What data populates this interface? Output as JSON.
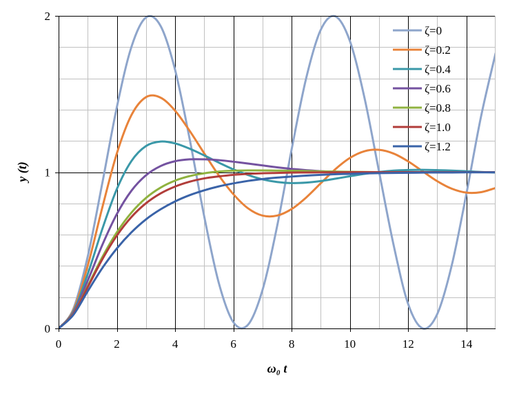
{
  "chart_data": {
    "type": "line",
    "title": "",
    "xlabel": "ω₀ t",
    "ylabel": "y (t)",
    "xlim": [
      0,
      15
    ],
    "ylim": [
      0,
      2
    ],
    "x_ticks": [
      "0",
      "2",
      "4",
      "6",
      "8",
      "10",
      "12",
      "14"
    ],
    "y_ticks": [
      "0",
      "1",
      "2"
    ],
    "grid": true,
    "legend_position": "top-right",
    "x": [
      0,
      0.5,
      1,
      1.5,
      2,
      2.5,
      3,
      3.5,
      4,
      4.5,
      5,
      5.5,
      6,
      6.5,
      7,
      7.5,
      8,
      8.5,
      9,
      9.5,
      10,
      10.5,
      11,
      11.5,
      12,
      12.5,
      13,
      13.5,
      14,
      14.5,
      15
    ],
    "series": [
      {
        "name": "ζ=0",
        "color": "#8ea5cb",
        "values": [
          0,
          0.122,
          0.46,
          0.929,
          1.416,
          1.801,
          1.99,
          1.936,
          1.654,
          1.211,
          0.716,
          0.291,
          0.04,
          0.023,
          0.246,
          0.653,
          1.146,
          1.602,
          1.911,
          1.997,
          1.839,
          1.476,
          1.004,
          0.534,
          0.156,
          0.0003,
          0.093,
          0.407,
          0.863,
          1.355,
          1.76
        ]
      },
      {
        "name": "ζ=0.2",
        "color": "#e8833a",
        "values": [
          0,
          0.114,
          0.401,
          0.773,
          1.12,
          1.365,
          1.48,
          1.477,
          1.393,
          1.264,
          1.12,
          0.979,
          0.859,
          0.769,
          0.722,
          0.722,
          0.764,
          0.838,
          0.929,
          1.019,
          1.091,
          1.134,
          1.143,
          1.119,
          1.069,
          1.005,
          0.942,
          0.894,
          0.869,
          0.872,
          0.899
        ]
      },
      {
        "name": "ζ=0.4",
        "color": "#3a98a8",
        "values": [
          0,
          0.106,
          0.348,
          0.636,
          0.892,
          1.071,
          1.167,
          1.196,
          1.184,
          1.15,
          1.107,
          1.061,
          1.018,
          0.982,
          0.954,
          0.937,
          0.93,
          0.933,
          0.943,
          0.958,
          0.974,
          0.989,
          1.001,
          1.01,
          1.014,
          1.015,
          1.013,
          1.01,
          1.006,
          1.001,
          0.998
        ]
      },
      {
        "name": "ζ=0.6",
        "color": "#7452a0",
        "values": [
          0,
          0.099,
          0.306,
          0.534,
          0.732,
          0.881,
          0.98,
          1.039,
          1.07,
          1.082,
          1.082,
          1.077,
          1.067,
          1.055,
          1.043,
          1.031,
          1.021,
          1.013,
          1.006,
          1.002,
          0.999,
          0.997,
          0.996,
          0.996,
          0.997,
          0.998,
          0.999,
          1.0,
          1.0,
          1.0,
          1.0
        ]
      },
      {
        "name": "ζ=0.8",
        "color": "#8fb23f",
        "values": [
          0,
          0.092,
          0.271,
          0.456,
          0.615,
          0.741,
          0.835,
          0.901,
          0.946,
          0.975,
          0.993,
          1.004,
          1.009,
          1.011,
          1.011,
          1.01,
          1.009,
          1.007,
          1.005,
          1.004,
          1.002,
          1.001,
          1.0,
          1.0,
          1.0,
          1.0,
          1.0,
          1.0,
          1.0,
          1.0,
          1.0
        ]
      },
      {
        "name": "ζ=1.0",
        "color": "#b13d3a",
        "values": [
          0,
          0.09,
          0.264,
          0.442,
          0.594,
          0.713,
          0.801,
          0.864,
          0.908,
          0.939,
          0.96,
          0.973,
          0.983,
          0.989,
          0.993,
          0.995,
          0.997,
          0.998,
          0.999,
          0.999,
          1.0,
          1.0,
          1.0,
          1.0,
          1.0,
          1.0,
          1.0,
          1.0,
          1.0,
          1.0,
          1.0
        ]
      },
      {
        "name": "ζ=1.2",
        "color": "#3a63a8",
        "values": [
          0,
          0.085,
          0.238,
          0.386,
          0.512,
          0.615,
          0.698,
          0.762,
          0.813,
          0.853,
          0.884,
          0.909,
          0.928,
          0.944,
          0.956,
          0.965,
          0.972,
          0.978,
          0.983,
          0.987,
          0.989,
          0.992,
          0.994,
          0.995,
          0.996,
          0.997,
          0.998,
          0.998,
          0.999,
          0.999,
          0.999
        ]
      }
    ]
  }
}
